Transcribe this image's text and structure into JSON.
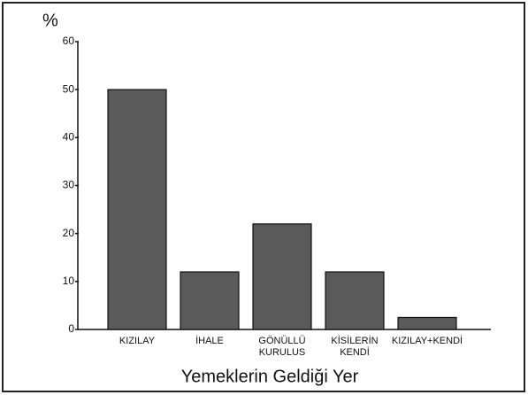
{
  "chart_data": {
    "type": "bar",
    "y_label": "%",
    "x_label": "Yemeklerin Geldiği Yer",
    "categories": [
      "KIZILAY",
      "İHALE",
      "GÖNÜLLÜ\nKURULUS",
      "KİSİLERİN\nKENDİ",
      "KIZILAY+KENDİ"
    ],
    "values": [
      50,
      12,
      22,
      12,
      2.5
    ],
    "color": "#5a5a5a",
    "ylim": [
      0,
      60
    ],
    "yticks": [
      0,
      10,
      20,
      30,
      40,
      50,
      60
    ],
    "grid": false
  }
}
